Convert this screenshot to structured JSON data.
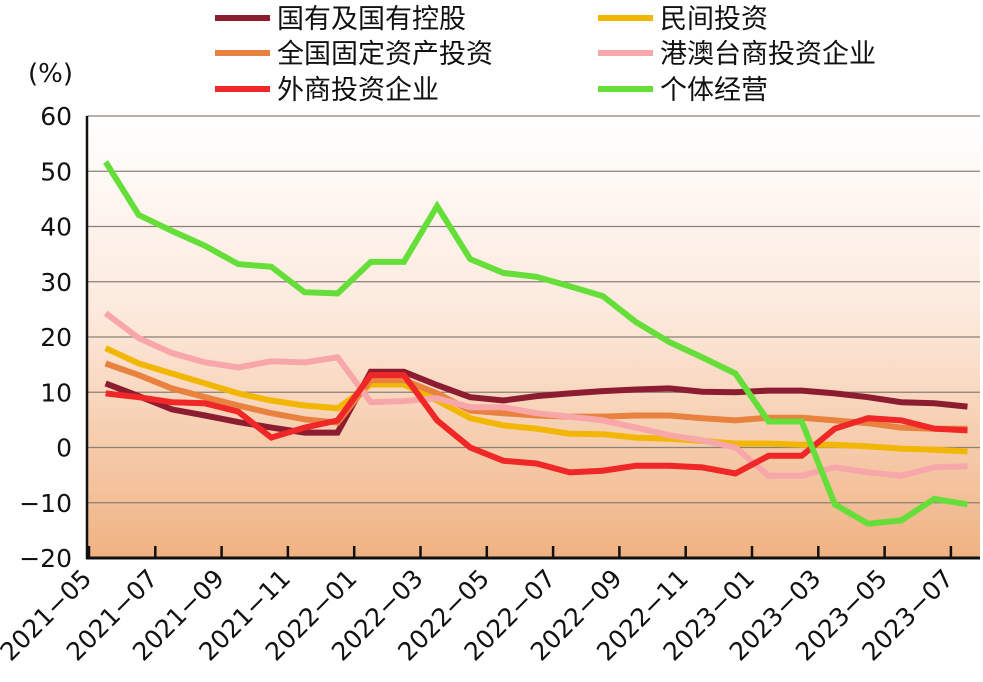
{
  "chart_data": {
    "type": "line",
    "title": "",
    "ylabel": "(%)",
    "xlabel": "",
    "ylim": [
      -20,
      60
    ],
    "yticks": [
      60,
      50,
      40,
      30,
      20,
      10,
      0,
      -10,
      -20
    ],
    "ytick_labels": [
      "60",
      "50",
      "40",
      "30",
      "20",
      "10",
      "0",
      "−10",
      "−20"
    ],
    "grid": "horizontal",
    "legend_placement": "top",
    "x": [
      "2021-05",
      "2021-06",
      "2021-07",
      "2021-08",
      "2021-09",
      "2021-10",
      "2021-11",
      "2021-12",
      "2022-01",
      "2022-02",
      "2022-03",
      "2022-04",
      "2022-05",
      "2022-06",
      "2022-07",
      "2022-08",
      "2022-09",
      "2022-10",
      "2022-11",
      "2022-12",
      "2023-01",
      "2023-02",
      "2023-03",
      "2023-04",
      "2023-05",
      "2023-06",
      "2023-07"
    ],
    "xtick_labels": [
      "2021−05",
      "2021−07",
      "2021−09",
      "2021−11",
      "2022−01",
      "2022−03",
      "2022−05",
      "2022−07",
      "2022−09",
      "2022−11",
      "2023−01",
      "2023−03",
      "2023−05",
      "2023−07"
    ],
    "series": [
      {
        "name": "国有及国有控股",
        "color": "#8c1c30",
        "values": [
          11.6,
          9.3,
          6.9,
          5.8,
          4.6,
          3.6,
          2.7,
          2.7,
          13.7,
          13.7,
          11.3,
          9.1,
          8.5,
          9.3,
          9.8,
          10.2,
          10.5,
          10.7,
          10.1,
          10.0,
          10.3,
          10.3,
          9.8,
          9.1,
          8.2,
          8.0,
          7.4
        ]
      },
      {
        "name": "民间投资",
        "color": "#f2b705",
        "values": [
          18.0,
          15.2,
          13.4,
          11.6,
          9.8,
          8.5,
          7.6,
          7.1,
          11.4,
          11.4,
          8.5,
          5.3,
          4.0,
          3.4,
          2.5,
          2.4,
          1.8,
          1.6,
          1.2,
          0.7,
          0.7,
          0.5,
          0.5,
          0.2,
          -0.2,
          -0.4,
          -0.7
        ]
      },
      {
        "name": "全国固定资产投资",
        "color": "#e8823e",
        "values": [
          15.2,
          13.1,
          10.7,
          9.1,
          7.6,
          6.2,
          5.1,
          4.5,
          12.2,
          12.2,
          9.8,
          6.7,
          6.2,
          5.8,
          5.6,
          5.6,
          5.8,
          5.8,
          5.3,
          4.9,
          5.4,
          5.4,
          4.9,
          4.4,
          3.6,
          3.4,
          3.4
        ]
      },
      {
        "name": "港澳台商投资企业",
        "color": "#f7a6aa",
        "values": [
          24.3,
          19.8,
          17.1,
          15.4,
          14.5,
          15.6,
          15.4,
          16.3,
          8.2,
          8.4,
          8.9,
          7.3,
          7.3,
          6.2,
          5.6,
          4.9,
          3.6,
          2.2,
          1.3,
          0.0,
          -5.1,
          -5.1,
          -3.6,
          -4.5,
          -5.1,
          -3.6,
          -3.4
        ]
      },
      {
        "name": "外商投资企业",
        "color": "#ef2727",
        "values": [
          9.8,
          9.1,
          8.2,
          8.0,
          6.5,
          1.8,
          3.6,
          4.9,
          13.1,
          13.1,
          4.9,
          0.0,
          -2.4,
          -2.9,
          -4.5,
          -4.2,
          -3.3,
          -3.3,
          -3.6,
          -4.7,
          -1.5,
          -1.5,
          3.4,
          5.3,
          4.9,
          3.4,
          3.1
        ]
      },
      {
        "name": "个体经营",
        "color": "#66de3a",
        "values": [
          51.7,
          42.1,
          39.2,
          36.5,
          33.2,
          32.7,
          28.1,
          27.9,
          33.6,
          33.6,
          43.7,
          34.1,
          31.6,
          30.9,
          29.2,
          27.4,
          22.7,
          19.1,
          16.3,
          13.4,
          4.7,
          4.7,
          -10.3,
          -13.8,
          -13.2,
          -9.3,
          -10.3
        ]
      }
    ]
  }
}
